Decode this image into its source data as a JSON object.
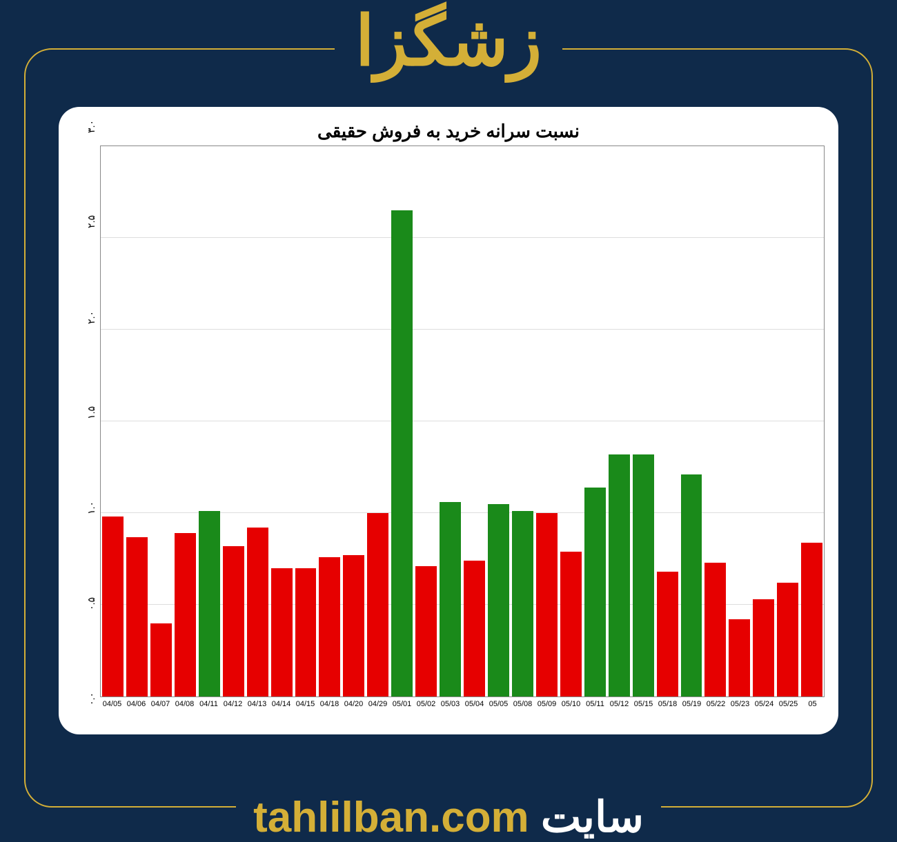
{
  "page": {
    "background_color": "#0f2a4a",
    "frame_border_color": "#d4af37",
    "frame_border_radius": 40,
    "title": "زشگزا",
    "title_color": "#d4af37",
    "title_fontsize": 100
  },
  "chart": {
    "type": "bar",
    "title": "نسبت سرانه خرید به فروش حقیقی",
    "title_fontsize": 26,
    "title_color": "#000000",
    "card_background": "#ffffff",
    "card_border_radius": 30,
    "plot_border_color": "#888888",
    "grid_color": "#bbbbbb",
    "ylim": [
      0.0,
      3.0
    ],
    "ytick_step": 0.5,
    "yticks": [
      "۰.۰",
      "۰.۵",
      "۱.۰",
      "۱.۵",
      "۲.۰",
      "۲.۵",
      "۳.۰"
    ],
    "ytick_values": [
      0.0,
      0.5,
      1.0,
      1.5,
      2.0,
      2.5,
      3.0
    ],
    "ytick_fontsize": 14,
    "xtick_fontsize": 11,
    "bar_width_ratio": 0.9,
    "color_positive": "#1a8a1a",
    "color_negative": "#e60000",
    "categories": [
      "04/05",
      "04/06",
      "04/07",
      "04/08",
      "04/11",
      "04/12",
      "04/13",
      "04/14",
      "04/15",
      "04/18",
      "04/20",
      "04/29",
      "05/01",
      "05/02",
      "05/03",
      "05/04",
      "05/05",
      "05/08",
      "05/09",
      "05/10",
      "05/11",
      "05/12",
      "05/15",
      "05/18",
      "05/19",
      "05/22",
      "05/23",
      "05/24",
      "05/25",
      "05"
    ],
    "values": [
      0.98,
      0.87,
      0.4,
      0.89,
      1.01,
      0.82,
      0.92,
      0.7,
      0.7,
      0.76,
      0.77,
      1.0,
      2.65,
      0.71,
      1.06,
      0.74,
      1.05,
      1.01,
      1.0,
      0.79,
      1.14,
      1.32,
      1.32,
      0.68,
      1.21,
      0.73,
      0.42,
      0.53,
      0.62,
      0.84
    ],
    "colors": [
      "#e60000",
      "#e60000",
      "#e60000",
      "#e60000",
      "#1a8a1a",
      "#e60000",
      "#e60000",
      "#e60000",
      "#e60000",
      "#e60000",
      "#e60000",
      "#e60000",
      "#1a8a1a",
      "#e60000",
      "#1a8a1a",
      "#e60000",
      "#1a8a1a",
      "#1a8a1a",
      "#e60000",
      "#e60000",
      "#1a8a1a",
      "#1a8a1a",
      "#1a8a1a",
      "#e60000",
      "#1a8a1a",
      "#e60000",
      "#e60000",
      "#e60000",
      "#e60000",
      "#e60000"
    ]
  },
  "footer": {
    "label": "سایت",
    "site": "tahlilban.com",
    "label_color": "#ffffff",
    "site_color": "#d4af37",
    "fontsize": 62
  }
}
